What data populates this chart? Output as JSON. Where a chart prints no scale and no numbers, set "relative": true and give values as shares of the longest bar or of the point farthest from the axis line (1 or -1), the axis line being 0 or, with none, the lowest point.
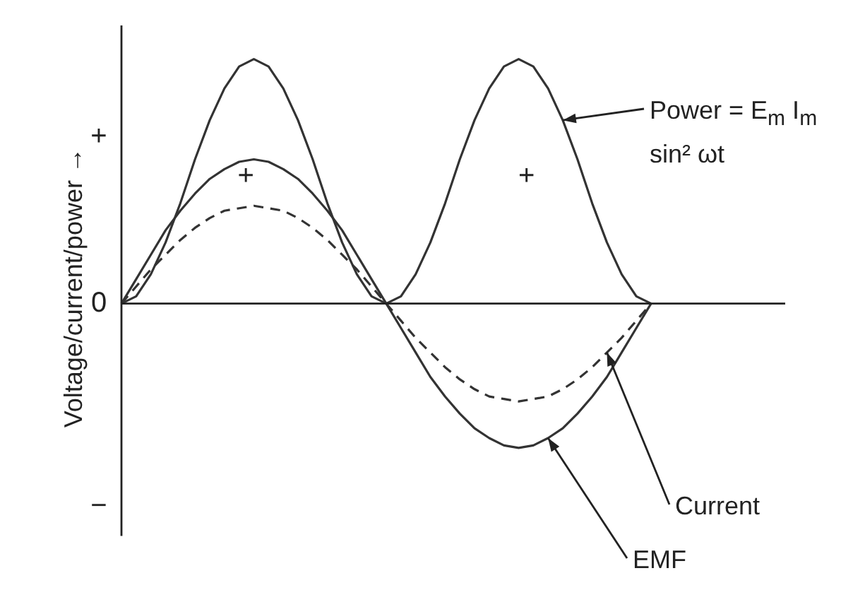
{
  "chart_data": {
    "type": "line",
    "relative": true,
    "ylabel": "Voltage/current/power →",
    "categories": [
      null,
      null,
      null,
      null,
      null,
      null,
      null,
      null,
      null,
      null,
      null,
      null,
      null,
      null,
      null,
      null,
      null,
      null,
      null,
      null,
      null,
      null,
      null,
      null,
      null,
      null,
      null,
      null,
      null,
      null,
      null,
      null,
      null,
      null,
      null,
      null,
      null
    ],
    "marker": "none",
    "grid": false,
    "legend": false,
    "series": [
      {
        "name": "Power = E$_{m}$ I$_{m}$ sin² ωt",
        "color": "#333333",
        "line_style": "solid",
        "values": [
          0,
          0.03,
          0.12,
          0.25,
          0.41,
          0.59,
          0.75,
          0.88,
          0.97,
          1,
          0.97,
          0.88,
          0.75,
          0.59,
          0.41,
          0.25,
          0.12,
          0.03,
          0,
          0.03,
          0.12,
          0.25,
          0.41,
          0.59,
          0.75,
          0.88,
          0.97,
          1,
          0.97,
          0.88,
          0.75,
          0.59,
          0.41,
          0.25,
          0.12,
          0.03,
          0
        ]
      },
      {
        "name": "EMF",
        "color": "#333333",
        "line_style": "solid",
        "values": [
          0,
          0.1,
          0.2,
          0.3,
          0.38,
          0.45,
          0.51,
          0.55,
          0.58,
          0.59,
          0.58,
          0.55,
          0.51,
          0.45,
          0.38,
          0.3,
          0.2,
          0.1,
          0,
          -0.1,
          -0.2,
          -0.3,
          -0.38,
          -0.45,
          -0.51,
          -0.55,
          -0.58,
          -0.59,
          -0.58,
          -0.55,
          -0.51,
          -0.45,
          -0.38,
          -0.3,
          -0.2,
          -0.1,
          0
        ]
      },
      {
        "name": "Current",
        "color": "#333333",
        "line_style": "dashed",
        "values": [
          0,
          0.07,
          0.14,
          0.2,
          0.26,
          0.31,
          0.35,
          0.38,
          0.39,
          0.4,
          0.39,
          0.38,
          0.35,
          0.31,
          0.26,
          0.2,
          0.14,
          0.07,
          0,
          -0.07,
          -0.14,
          -0.2,
          -0.26,
          -0.31,
          -0.35,
          -0.38,
          -0.39,
          -0.4,
          -0.39,
          -0.38,
          -0.35,
          -0.31,
          -0.26,
          -0.2,
          -0.14,
          -0.07,
          0
        ]
      }
    ],
    "annotations": [
      "+",
      "0",
      "−",
      "+",
      "+"
    ]
  }
}
